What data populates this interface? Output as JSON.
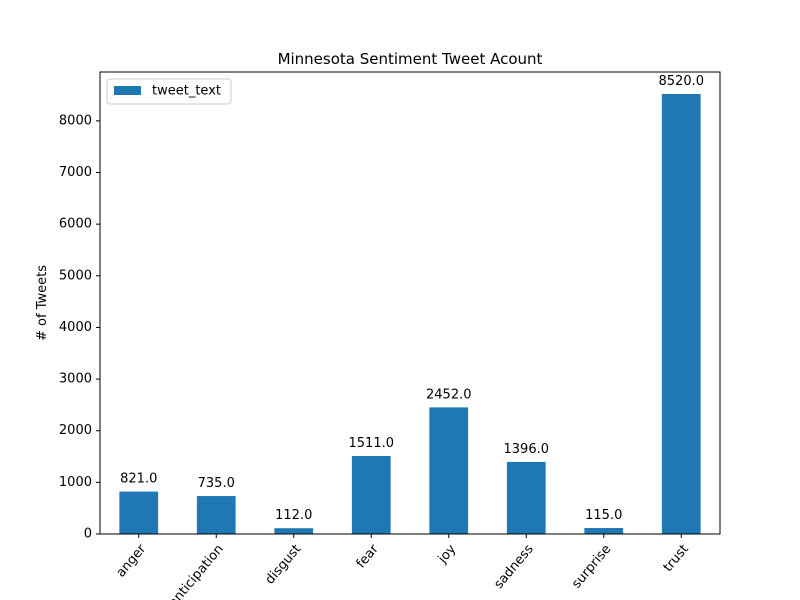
{
  "chart_data": {
    "type": "bar",
    "title": "Minnesota Sentiment Tweet Acount",
    "xlabel": "",
    "ylabel": "# of Tweets",
    "categories": [
      "anger",
      "anticipation",
      "disgust",
      "fear",
      "joy",
      "sadness",
      "surprise",
      "trust"
    ],
    "series": [
      {
        "name": "tweet_text",
        "values": [
          821.0,
          735.0,
          112.0,
          1511.0,
          2452.0,
          1396.0,
          115.0,
          8520.0
        ],
        "color": "#1f77b4"
      }
    ],
    "data_labels": [
      "821.0",
      "735.0",
      "112.0",
      "1511.0",
      "2452.0",
      "1396.0",
      "115.0",
      "8520.0"
    ],
    "ylim": [
      0,
      8946
    ],
    "yticks": [
      0,
      1000,
      2000,
      3000,
      4000,
      5000,
      6000,
      7000,
      8000
    ],
    "legend": {
      "position": "top-left",
      "entries": [
        "tweet_text"
      ]
    },
    "grid": false
  }
}
